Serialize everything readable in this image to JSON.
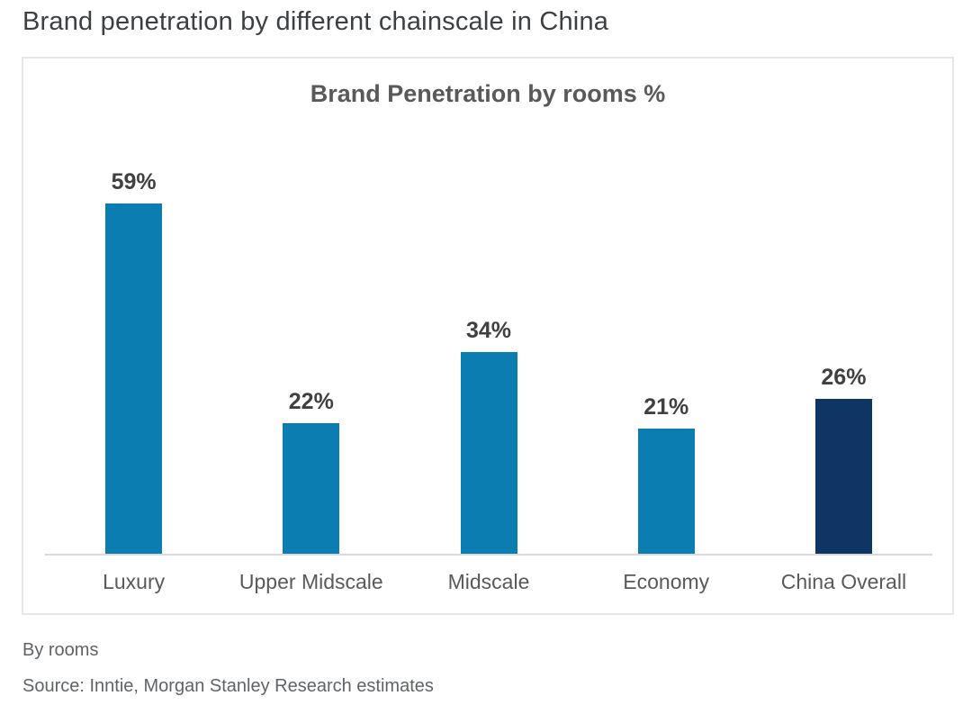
{
  "page": {
    "title": "Brand penetration by different chainscale in China"
  },
  "chart_data": {
    "type": "bar",
    "title": "Brand Penetration by rooms %",
    "categories": [
      "Luxury",
      "Upper Midscale",
      "Midscale",
      "Economy",
      "China Overall"
    ],
    "values": [
      59,
      22,
      34,
      21,
      26
    ],
    "value_labels": [
      "59%",
      "22%",
      "34%",
      "21%",
      "26%"
    ],
    "bar_colors": [
      "#0b7db1",
      "#0b7db1",
      "#0b7db1",
      "#0b7db1",
      "#0e3563"
    ],
    "xlabel": "",
    "ylabel": "",
    "ylim": [
      0,
      62
    ],
    "grid": false,
    "legend": false,
    "value_labels_position": "above-bars",
    "axis_line_color": "#d9d9d9"
  },
  "colors": {
    "bar_primary": "#0b7db1",
    "bar_highlight": "#0e3563",
    "panel_border": "#e7e7e7",
    "title_text": "#3d4043",
    "chart_title_text": "#595959"
  },
  "footer": {
    "note": "By rooms",
    "source": "Source: Inntie, Morgan Stanley Research estimates"
  }
}
